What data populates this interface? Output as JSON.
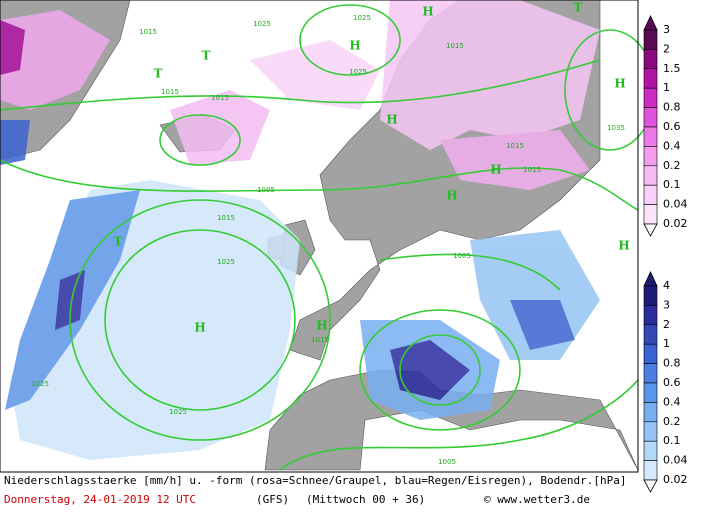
{
  "legends": {
    "snow": {
      "labels": [
        3,
        2,
        1.5,
        1,
        0.8,
        0.6,
        0.4,
        0.2,
        0.1,
        0.04,
        0.02
      ],
      "colors": [
        "#5a0a52",
        "#880a7c",
        "#b014a4",
        "#cc2cc4",
        "#e054dc",
        "#ec7ae8",
        "#f29cef",
        "#f6baf4",
        "#f9d0f8",
        "#fce4fb",
        "#ffffff"
      ]
    },
    "rain": {
      "labels": [
        4,
        3,
        2,
        1,
        0.8,
        0.6,
        0.4,
        0.2,
        0.1,
        0.04,
        0.02
      ],
      "colors": [
        "#1c1c78",
        "#2a2c9e",
        "#3448b6",
        "#3c62d0",
        "#4a7ee0",
        "#5c96e8",
        "#78aef0",
        "#96c4f4",
        "#b4d8f8",
        "#d4e9fb",
        "#ffffff"
      ]
    }
  },
  "isobar_labels": [
    "1015",
    "1025",
    "1025",
    "1015",
    "1015",
    "1015",
    "1025",
    "1005",
    "1015",
    "1025",
    "1025",
    "1025",
    "1005",
    "1015",
    "1015",
    "1005",
    "1035",
    "1015"
  ],
  "centers": [
    "T",
    "H",
    "H",
    "T",
    "H",
    "T",
    "H",
    "H",
    "H",
    "H",
    "T",
    "H",
    "H"
  ],
  "footer": {
    "line1": "Niederschlagsstaerke [mm/h] u. -form (rosa=Schnee/Graupel, blau=Regen/Eisregen), Bodendr.[hPa]",
    "date": "Donnerstag, 24-01-2019  12 UTC",
    "model": "(GFS)",
    "run": "(Mittwoch 00 + 36)",
    "source": "© www.wetter3.de"
  }
}
